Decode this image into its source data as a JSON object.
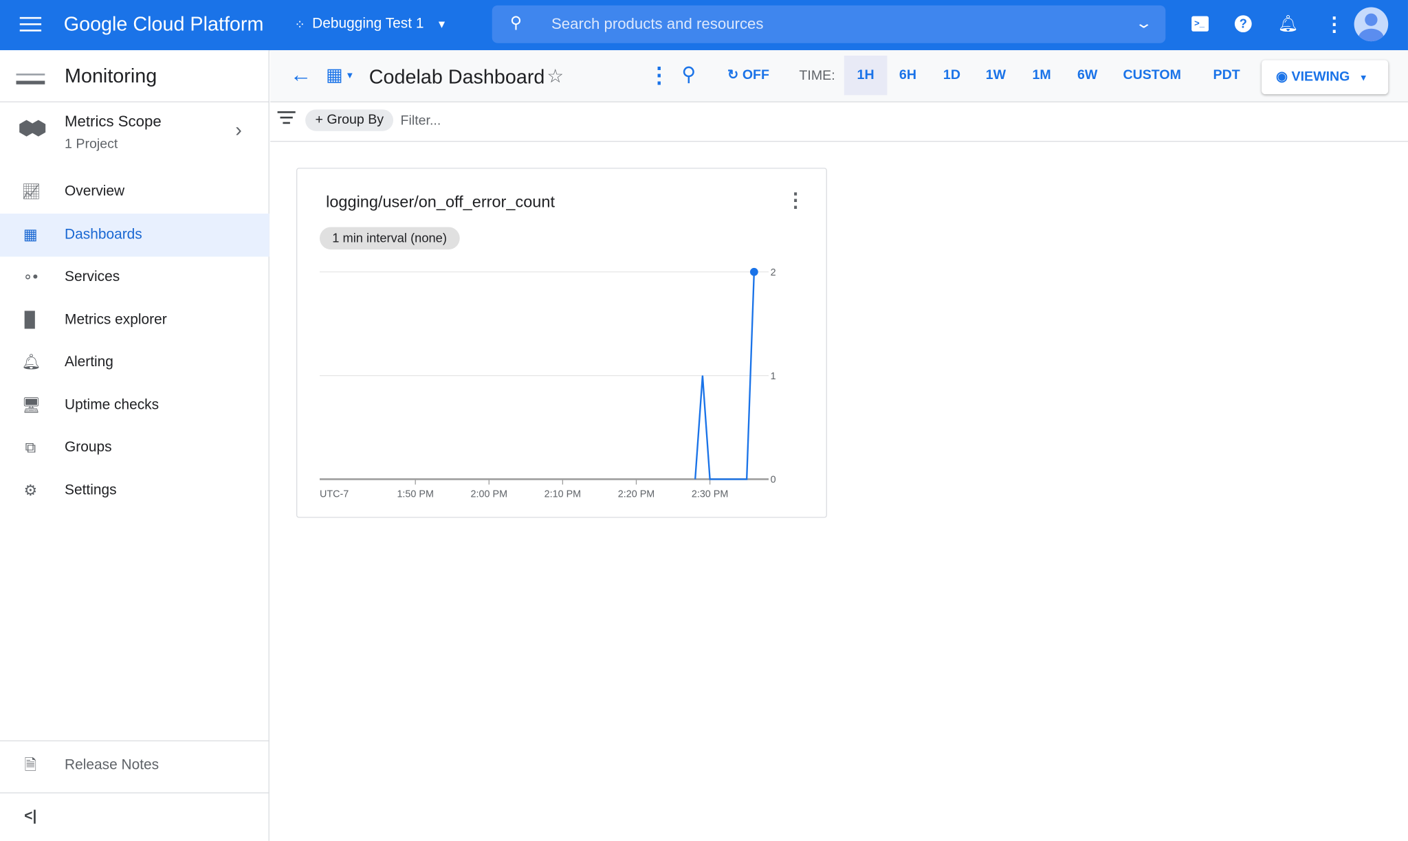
{
  "topbar": {
    "brand": "Google Cloud Platform",
    "project": "Debugging Test 1",
    "search_placeholder": "Search products and resources"
  },
  "sidebar": {
    "title": "Monitoring",
    "scope": {
      "title": "Metrics Scope",
      "subtitle": "1 Project"
    },
    "items": [
      {
        "label": "Overview",
        "icon": "chart-icon"
      },
      {
        "label": "Dashboards",
        "icon": "dashboard-icon",
        "active": true
      },
      {
        "label": "Services",
        "icon": "services-icon"
      },
      {
        "label": "Metrics explorer",
        "icon": "bar-chart-icon"
      },
      {
        "label": "Alerting",
        "icon": "bell-icon"
      },
      {
        "label": "Uptime checks",
        "icon": "monitor-icon"
      },
      {
        "label": "Groups",
        "icon": "groups-icon"
      },
      {
        "label": "Settings",
        "icon": "gear-icon"
      }
    ],
    "release_notes": "Release Notes"
  },
  "toolbar": {
    "title": "Codelab Dashboard",
    "auto_refresh": "OFF",
    "time_label": "TIME:",
    "ranges": [
      "1H",
      "6H",
      "1D",
      "1W",
      "1M",
      "6W",
      "CUSTOM"
    ],
    "selected_range": "1H",
    "timezone": "PDT",
    "viewing": "VIEWING"
  },
  "filterbar": {
    "group_by": "+ Group By",
    "filter_placeholder": "Filter..."
  },
  "chart_data": {
    "type": "line",
    "title": "logging/user/on_off_error_count",
    "badge": "1 min interval (none)",
    "timezone_label": "UTC-7",
    "x_ticks": [
      "1:50 PM",
      "2:00 PM",
      "2:10 PM",
      "2:20 PM",
      "2:30 PM"
    ],
    "x_range": [
      "1:37 PM",
      "2:37 PM"
    ],
    "y_ticks": [
      0,
      1,
      2
    ],
    "ylim": [
      0,
      2
    ],
    "grid": true,
    "color": "#1a73e8",
    "points": [
      {
        "x": "2:28 PM",
        "y": 0
      },
      {
        "x": "2:29 PM",
        "y": 1
      },
      {
        "x": "2:30 PM",
        "y": 0
      },
      {
        "x": "2:35 PM",
        "y": 0
      },
      {
        "x": "2:36 PM",
        "y": 2
      }
    ]
  }
}
